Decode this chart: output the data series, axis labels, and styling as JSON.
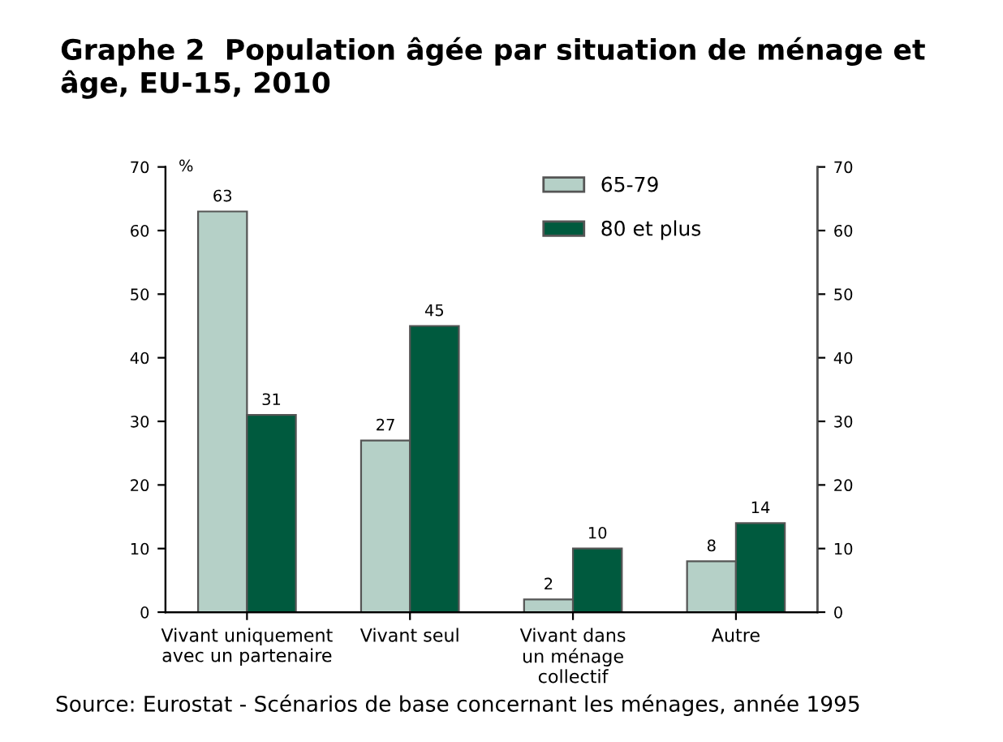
{
  "chart_data": {
    "type": "bar",
    "title": "Graphe 2  Population âgée par situation de ménage et âge, EU-15, 2010",
    "ylabel": "%",
    "categories": [
      "Vivant uniquement\navec un partenaire",
      "Vivant seul",
      "Vivant dans\nun ménage\ncollectif",
      "Autre"
    ],
    "series": [
      {
        "name": "65-79",
        "color": "#b5d0c7",
        "values": [
          63,
          27,
          2,
          8
        ]
      },
      {
        "name": "80 et plus",
        "color": "#005a3e",
        "values": [
          31,
          45,
          10,
          14
        ]
      }
    ],
    "ylim": [
      0,
      70
    ],
    "yticks": [
      0,
      10,
      20,
      30,
      40,
      50,
      60,
      70
    ],
    "y2lim": [
      0,
      70
    ],
    "y2ticks": [
      0,
      10,
      20,
      30,
      40,
      50,
      60,
      70
    ],
    "data_labels": true,
    "grid": false,
    "legend": "top right",
    "annotations": [
      "Source: Eurostat - Scénarios de base concernant les ménages, année 1995"
    ]
  }
}
